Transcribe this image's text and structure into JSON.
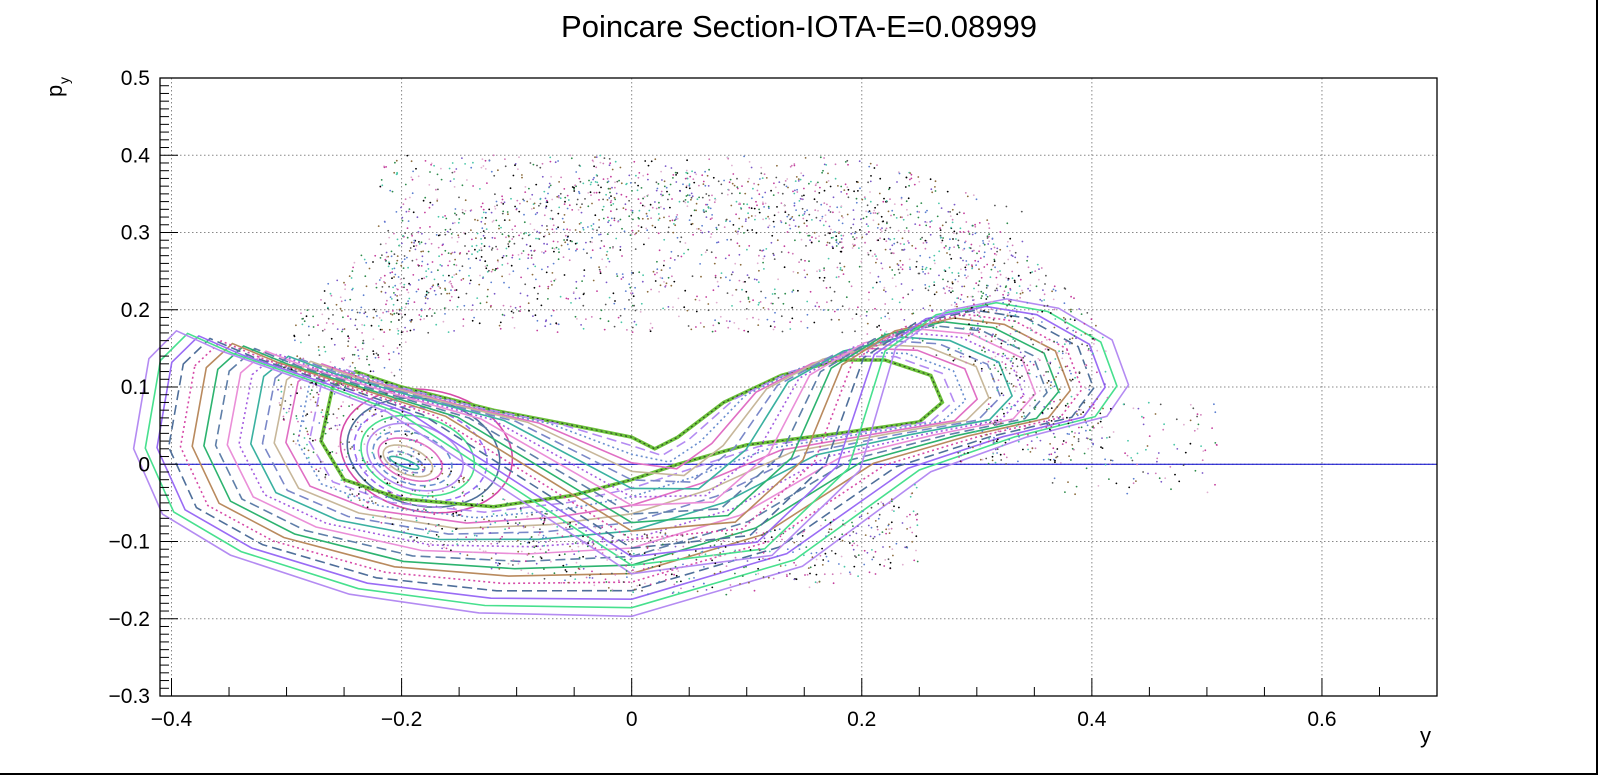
{
  "chart_data": {
    "type": "scatter",
    "title": "Poincare Section-IOTA-E=0.08999",
    "xlabel": "y",
    "ylabel_main": "p",
    "ylabel_sub": "y",
    "xlim": [
      -0.41,
      0.7
    ],
    "ylim": [
      -0.3,
      0.5
    ],
    "grid": true,
    "x_ticks": [
      -0.4,
      -0.2,
      0,
      0.2,
      0.4,
      0.6
    ],
    "x_tick_labels": [
      "−0.4",
      "−0.2",
      "0",
      "0.2",
      "0.4",
      "0.6"
    ],
    "y_ticks": [
      -0.3,
      -0.2,
      -0.1,
      0,
      0.1,
      0.2,
      0.3,
      0.4,
      0.5
    ],
    "y_tick_labels": [
      "−0.3",
      "−0.2",
      "−0.1",
      "0",
      "0.1",
      "0.2",
      "0.3",
      "0.4",
      "0.5"
    ],
    "reference_line": {
      "y": 0,
      "color": "#0000cc"
    },
    "separatrix": [
      [
        -0.26,
        0.1
      ],
      [
        -0.24,
        0.12
      ],
      [
        -0.2,
        0.1
      ],
      [
        -0.12,
        0.07
      ],
      [
        -0.05,
        0.05
      ],
      [
        0.0,
        0.035
      ],
      [
        0.02,
        0.02
      ],
      [
        0.04,
        0.035
      ],
      [
        0.08,
        0.08
      ],
      [
        0.13,
        0.115
      ],
      [
        0.18,
        0.135
      ],
      [
        0.22,
        0.135
      ],
      [
        0.26,
        0.115
      ],
      [
        0.27,
        0.08
      ],
      [
        0.25,
        0.055
      ],
      [
        0.18,
        0.04
      ],
      [
        0.1,
        0.025
      ],
      [
        0.04,
        0.0
      ],
      [
        0.0,
        -0.02
      ],
      [
        -0.05,
        -0.04
      ],
      [
        -0.12,
        -0.055
      ],
      [
        -0.2,
        -0.045
      ],
      [
        -0.25,
        -0.02
      ],
      [
        -0.27,
        0.03
      ],
      [
        -0.26,
        0.1
      ]
    ],
    "island_center": [
      -0.2,
      0.0
    ],
    "series_colors": [
      "#d64aa8",
      "#4f6f9a",
      "#9a6cf5",
      "#47e08e",
      "#b48bf2",
      "#6a8fcf",
      "#e06fc4",
      "#c7b79a",
      "#7a88c8",
      "#3ab1a0",
      "#a45ce0",
      "#ea8fd8",
      "#5f7fa8",
      "#2db36f",
      "#b98a5e"
    ],
    "chaos_colors": [
      "#000000",
      "#555555",
      "#2c8a4a",
      "#c43d9c",
      "#5b7fd0",
      "#8a6a3a",
      "#d07ab8",
      "#4ac7a8",
      "#7a58c8",
      "#e0b0d0"
    ],
    "chaos_region": {
      "y_range": [
        -0.34,
        0.51
      ],
      "py_range": [
        -0.2,
        0.41
      ]
    }
  }
}
